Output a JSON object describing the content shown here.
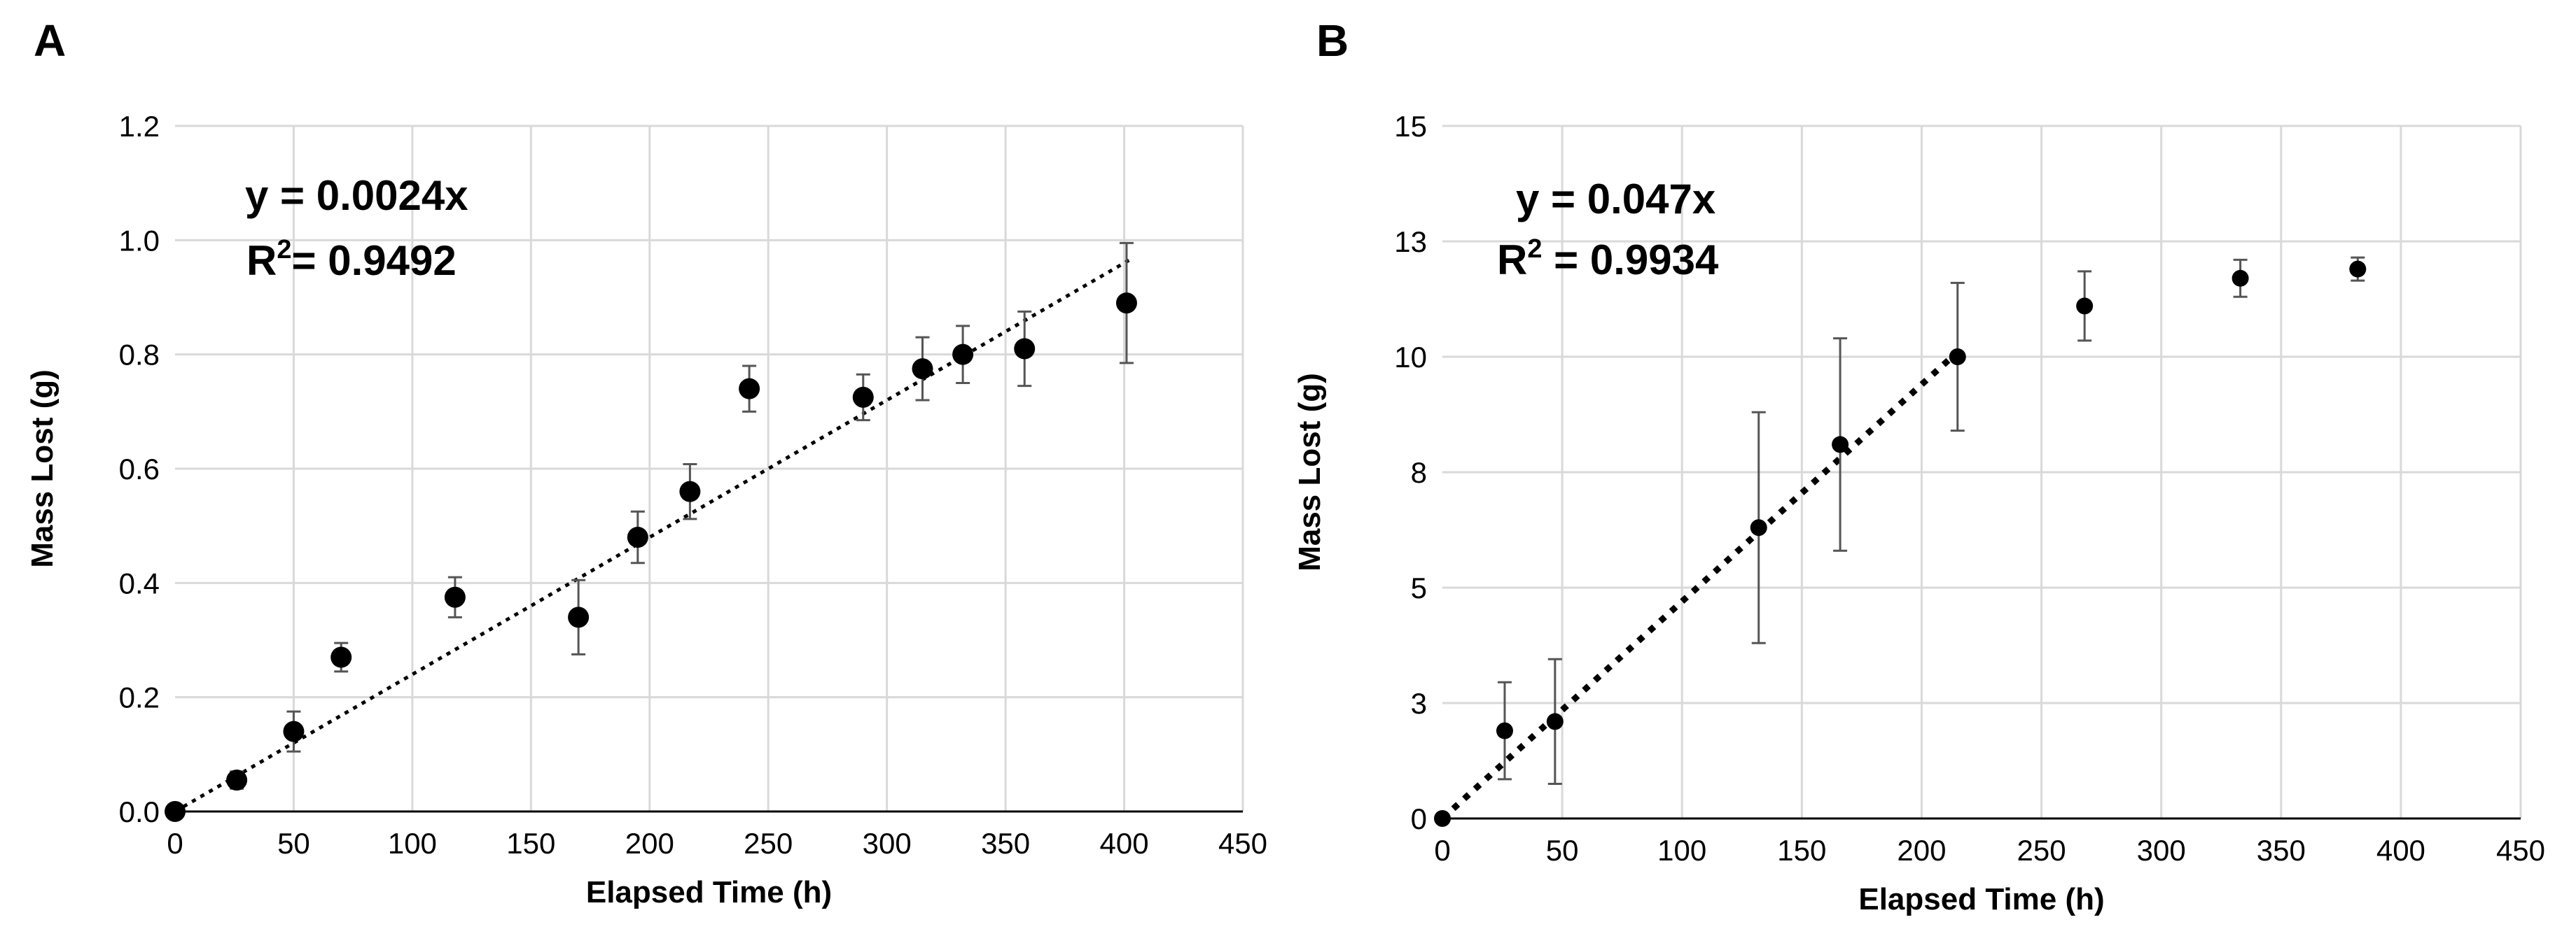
{
  "chart_data": [
    {
      "panel": "A",
      "type": "scatter",
      "xlabel": "Elapsed Time (h)",
      "ylabel": "Mass Lost (g)",
      "xlim": [
        0,
        450
      ],
      "ylim": [
        0,
        1.2
      ],
      "xticks": [
        0,
        50,
        100,
        150,
        200,
        250,
        300,
        350,
        400,
        450
      ],
      "yticks": [
        "0.0",
        "0.2",
        "0.4",
        "0.6",
        "0.8",
        "1.0",
        "1.2"
      ],
      "grid": true,
      "equation": "y = 0.0024x",
      "r2_label": "R",
      "r2_sup": "2",
      "r2_value": "= 0.9492",
      "trendline": {
        "slope": 0.0024,
        "x_end": 402
      },
      "points": [
        {
          "x": 0,
          "y": 0.0,
          "err": 0.0
        },
        {
          "x": 26,
          "y": 0.055,
          "err": 0.015
        },
        {
          "x": 50,
          "y": 0.14,
          "err": 0.035
        },
        {
          "x": 70,
          "y": 0.27,
          "err": 0.025
        },
        {
          "x": 118,
          "y": 0.375,
          "err": 0.035
        },
        {
          "x": 170,
          "y": 0.34,
          "err": 0.065
        },
        {
          "x": 195,
          "y": 0.48,
          "err": 0.045
        },
        {
          "x": 217,
          "y": 0.56,
          "err": 0.048
        },
        {
          "x": 242,
          "y": 0.74,
          "err": 0.04
        },
        {
          "x": 290,
          "y": 0.725,
          "err": 0.04
        },
        {
          "x": 315,
          "y": 0.775,
          "err": 0.055
        },
        {
          "x": 332,
          "y": 0.8,
          "err": 0.05
        },
        {
          "x": 358,
          "y": 0.81,
          "err": 0.065
        },
        {
          "x": 401,
          "y": 0.89,
          "err": 0.105
        }
      ]
    },
    {
      "panel": "B",
      "type": "scatter",
      "xlabel": "Elapsed Time (h)",
      "ylabel": "Mass Lost (g)",
      "xlim": [
        0,
        450
      ],
      "ylim": [
        0,
        15
      ],
      "xticks": [
        0,
        50,
        100,
        150,
        200,
        250,
        300,
        350,
        400,
        450
      ],
      "yticks": [
        "0",
        "3",
        "5",
        "8",
        "10",
        "13",
        "15"
      ],
      "grid": true,
      "equation": "y = 0.047x",
      "r2_label": "R",
      "r2_sup": "2",
      "r2_value": " = 0.9934",
      "trendline": {
        "slope": 0.047,
        "x_end": 213
      },
      "points": [
        {
          "x": 0,
          "y": 0.0,
          "err": 0.0
        },
        {
          "x": 26,
          "y": 1.9,
          "err": 1.05
        },
        {
          "x": 47,
          "y": 2.1,
          "err": 1.35
        },
        {
          "x": 132,
          "y": 6.3,
          "err": 2.5
        },
        {
          "x": 166,
          "y": 8.1,
          "err": 2.3
        },
        {
          "x": 215,
          "y": 10.0,
          "err": 1.6
        },
        {
          "x": 268,
          "y": 11.1,
          "err": 0.75
        },
        {
          "x": 333,
          "y": 11.7,
          "err": 0.4
        },
        {
          "x": 382,
          "y": 11.9,
          "err": 0.25
        }
      ]
    }
  ]
}
